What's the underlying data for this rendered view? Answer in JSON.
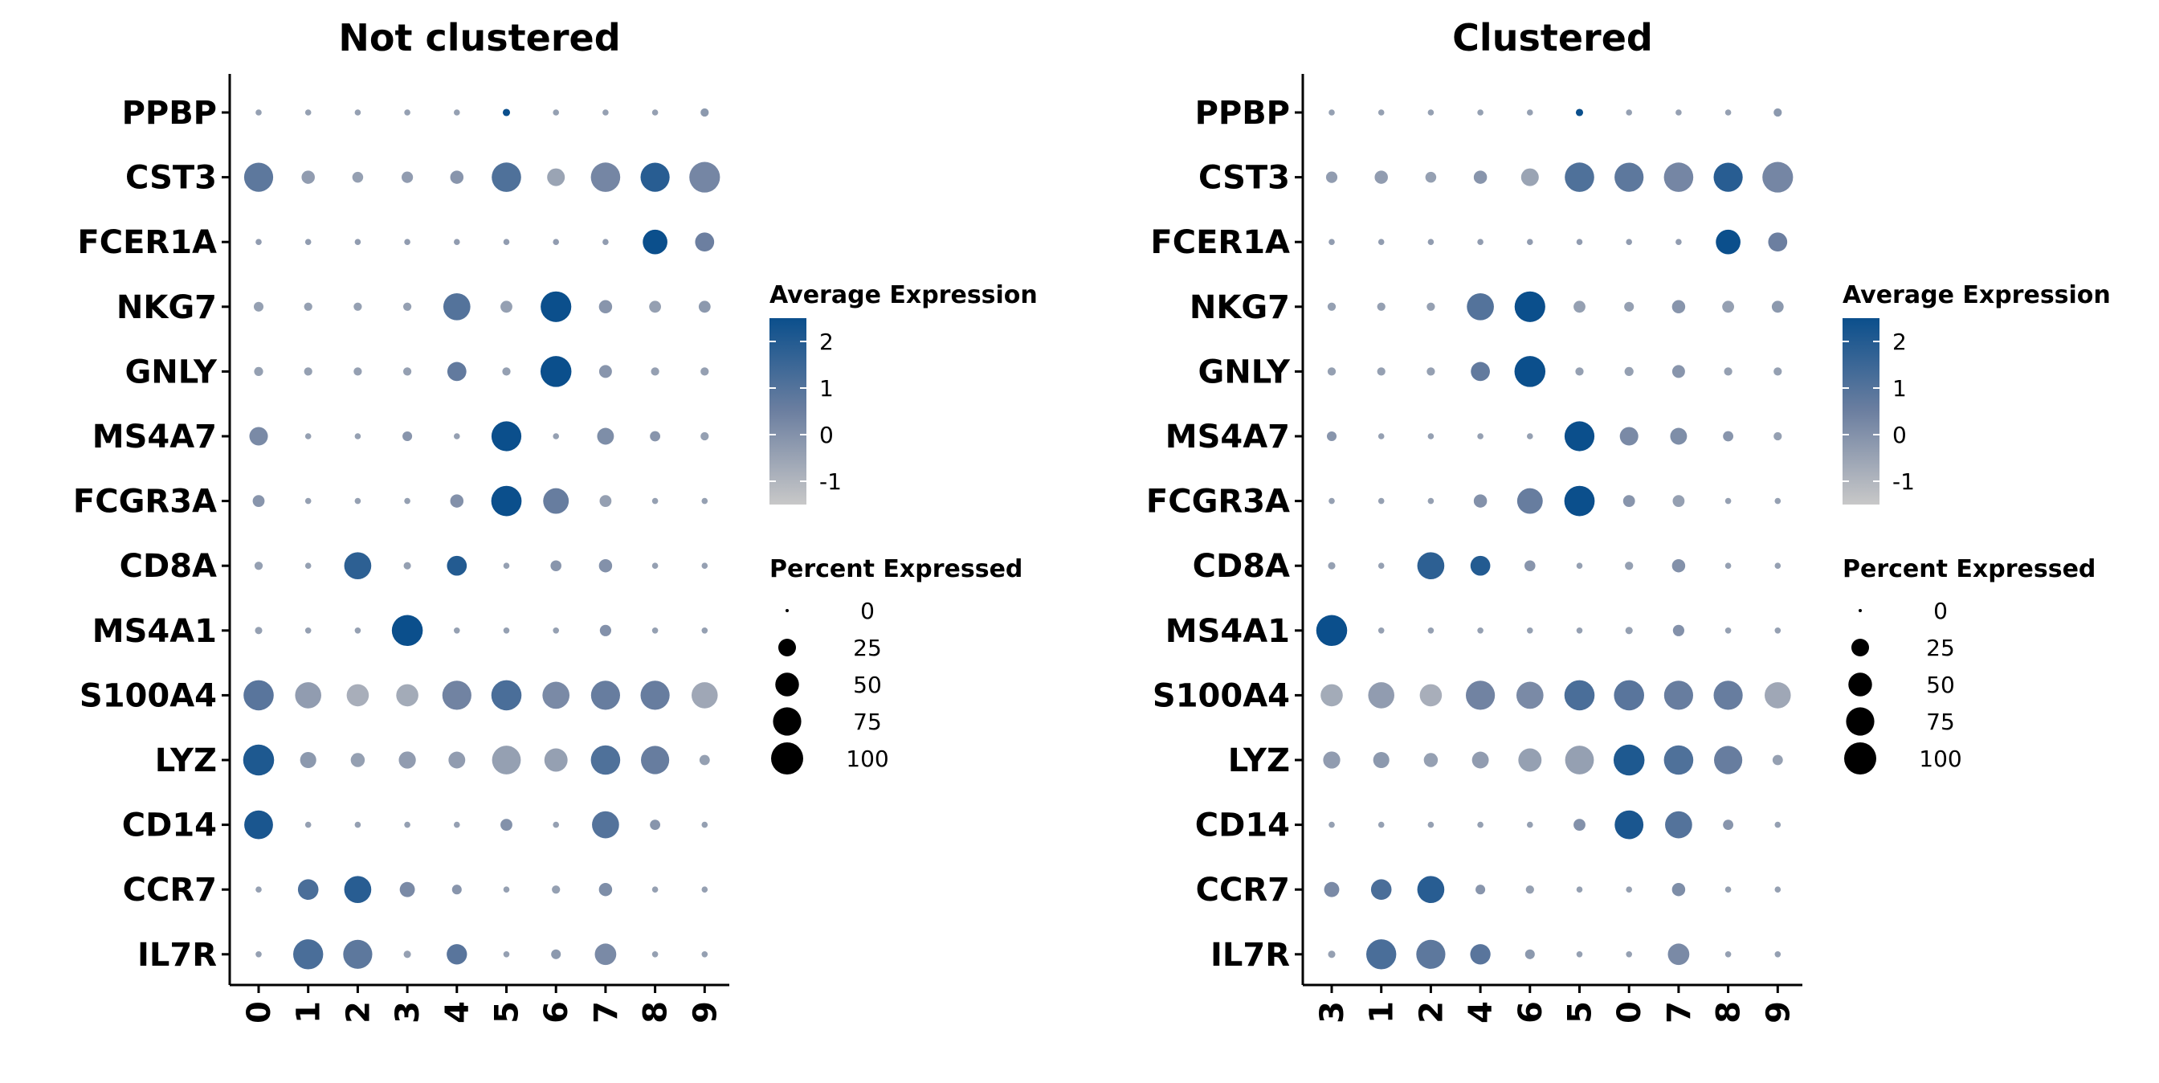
{
  "chart_data": [
    {
      "type": "dotplot",
      "title": "Not clustered",
      "genes": [
        "PPBP",
        "CST3",
        "FCER1A",
        "NKG7",
        "GNLY",
        "MS4A7",
        "FCGR3A",
        "CD8A",
        "MS4A1",
        "S100A4",
        "LYZ",
        "CD14",
        "CCR7",
        "IL7R"
      ],
      "clusters": [
        "0",
        "1",
        "2",
        "3",
        "4",
        "5",
        "6",
        "7",
        "8",
        "9"
      ],
      "avg_expression": {
        "PPBP": [
          -0.4,
          -0.4,
          -0.4,
          -0.4,
          -0.4,
          2.6,
          -0.4,
          -0.4,
          -0.4,
          -0.2
        ],
        "CST3": [
          0.8,
          -0.3,
          -0.4,
          -0.3,
          -0.1,
          1.1,
          -0.5,
          0.3,
          1.9,
          0.3
        ],
        "FCER1A": [
          -0.3,
          -0.3,
          -0.3,
          -0.3,
          -0.3,
          -0.3,
          -0.3,
          -0.3,
          2.7,
          0.5
        ],
        "NKG7": [
          -0.4,
          -0.4,
          -0.4,
          -0.4,
          1.0,
          -0.4,
          2.5,
          -0.1,
          -0.4,
          -0.2
        ],
        "GNLY": [
          -0.4,
          -0.4,
          -0.4,
          -0.4,
          0.7,
          -0.4,
          2.6,
          -0.1,
          -0.4,
          -0.4
        ],
        "MS4A7": [
          0.2,
          -0.4,
          -0.4,
          -0.1,
          -0.4,
          2.6,
          -0.4,
          0.1,
          -0.1,
          -0.4
        ],
        "FCGR3A": [
          -0.1,
          -0.4,
          -0.4,
          -0.4,
          0.0,
          2.6,
          0.6,
          -0.4,
          -0.4,
          -0.4
        ],
        "CD8A": [
          -0.4,
          -0.4,
          1.8,
          -0.4,
          2.0,
          -0.4,
          -0.1,
          0.0,
          -0.4,
          -0.4
        ],
        "MS4A1": [
          -0.4,
          -0.4,
          -0.4,
          2.6,
          -0.4,
          -0.4,
          -0.4,
          0.0,
          -0.4,
          -0.4
        ],
        "S100A4": [
          0.9,
          -0.3,
          -0.8,
          -0.7,
          0.4,
          1.2,
          0.2,
          0.6,
          0.6,
          -0.6
        ],
        "LYZ": [
          2.1,
          -0.2,
          -0.4,
          -0.3,
          -0.3,
          -0.4,
          -0.4,
          1.1,
          0.6,
          -0.4
        ],
        "CD14": [
          2.2,
          -0.4,
          -0.4,
          -0.4,
          -0.4,
          0.0,
          -0.4,
          1.0,
          -0.1,
          -0.4
        ],
        "CCR7": [
          -0.4,
          1.2,
          1.9,
          0.2,
          -0.1,
          -0.4,
          -0.4,
          0.1,
          -0.4,
          -0.4
        ],
        "IL7R": [
          -0.4,
          1.2,
          0.8,
          -0.4,
          0.9,
          -0.4,
          -0.2,
          0.2,
          -0.4,
          -0.4
        ]
      },
      "pct_expressed": {
        "PPBP": [
          1,
          1,
          1,
          1,
          1,
          2,
          1,
          1,
          1,
          3
        ],
        "CST3": [
          80,
          12,
          7,
          8,
          12,
          82,
          25,
          82,
          80,
          90
        ],
        "FCER1A": [
          1,
          1,
          1,
          1,
          1,
          1,
          1,
          1,
          55,
          30
        ],
        "NKG7": [
          5,
          3,
          3,
          3,
          68,
          9,
          90,
          12,
          9,
          9
        ],
        "GNLY": [
          4,
          3,
          3,
          3,
          30,
          3,
          92,
          11,
          3,
          3
        ],
        "MS4A7": [
          28,
          1,
          1,
          5,
          1,
          85,
          1,
          22,
          6,
          3
        ],
        "FCGR3A": [
          9,
          1,
          1,
          1,
          12,
          88,
          60,
          9,
          1,
          1
        ],
        "CD8A": [
          3,
          1,
          68,
          2,
          33,
          1,
          7,
          12,
          1,
          1
        ],
        "MS4A1": [
          2,
          1,
          1,
          92,
          1,
          1,
          1,
          8,
          1,
          1
        ],
        "S100A4": [
          87,
          63,
          43,
          43,
          80,
          87,
          68,
          80,
          80,
          63
        ],
        "LYZ": [
          92,
          20,
          14,
          23,
          22,
          78,
          48,
          82,
          75,
          6
        ],
        "CD14": [
          78,
          1,
          1,
          1,
          1,
          9,
          1,
          68,
          6,
          1
        ],
        "CCR7": [
          1,
          36,
          68,
          17,
          5,
          1,
          3,
          12,
          1,
          1
        ],
        "IL7R": [
          1,
          86,
          80,
          2,
          35,
          1,
          5,
          40,
          1,
          1
        ]
      },
      "legend_color_title": "Average Expression",
      "legend_color_ticks": [
        -1,
        0,
        1,
        2
      ],
      "legend_size_title": "Percent Expressed",
      "legend_size_ticks": [
        0,
        25,
        50,
        75,
        100
      ]
    },
    {
      "type": "dotplot",
      "title": "Clustered",
      "genes": [
        "PPBP",
        "CST3",
        "FCER1A",
        "NKG7",
        "GNLY",
        "MS4A7",
        "FCGR3A",
        "CD8A",
        "MS4A1",
        "S100A4",
        "LYZ",
        "CD14",
        "CCR7",
        "IL7R"
      ],
      "clusters": [
        "3",
        "1",
        "2",
        "4",
        "6",
        "5",
        "0",
        "7",
        "8",
        "9"
      ],
      "avg_expression": {
        "PPBP": [
          -0.4,
          -0.4,
          -0.4,
          -0.4,
          -0.4,
          2.6,
          -0.4,
          -0.4,
          -0.4,
          -0.2
        ],
        "CST3": [
          -0.3,
          -0.3,
          -0.4,
          -0.1,
          -0.5,
          1.1,
          0.8,
          0.3,
          1.9,
          0.3
        ],
        "FCER1A": [
          -0.3,
          -0.3,
          -0.3,
          -0.3,
          -0.3,
          -0.3,
          -0.3,
          -0.3,
          2.7,
          0.5
        ],
        "NKG7": [
          -0.4,
          -0.4,
          -0.4,
          1.0,
          2.5,
          -0.4,
          -0.4,
          -0.1,
          -0.4,
          -0.2
        ],
        "GNLY": [
          -0.4,
          -0.4,
          -0.4,
          0.7,
          2.6,
          -0.4,
          -0.4,
          -0.1,
          -0.4,
          -0.4
        ],
        "MS4A7": [
          -0.1,
          -0.4,
          -0.4,
          -0.4,
          -0.4,
          2.6,
          0.2,
          0.1,
          -0.1,
          -0.4
        ],
        "FCGR3A": [
          -0.4,
          -0.4,
          -0.4,
          0.0,
          0.6,
          2.6,
          -0.1,
          -0.4,
          -0.4,
          -0.4
        ],
        "CD8A": [
          -0.4,
          -0.4,
          1.8,
          2.0,
          -0.1,
          -0.4,
          -0.4,
          0.0,
          -0.4,
          -0.4
        ],
        "MS4A1": [
          2.6,
          -0.4,
          -0.4,
          -0.4,
          -0.4,
          -0.4,
          -0.4,
          0.0,
          -0.4,
          -0.4
        ],
        "S100A4": [
          -0.7,
          -0.3,
          -0.8,
          0.4,
          0.2,
          1.2,
          0.9,
          0.6,
          0.6,
          -0.6
        ],
        "LYZ": [
          -0.3,
          -0.2,
          -0.4,
          -0.3,
          -0.4,
          -0.4,
          2.1,
          1.1,
          0.6,
          -0.4
        ],
        "CD14": [
          -0.4,
          -0.4,
          -0.4,
          -0.4,
          -0.4,
          0.0,
          2.2,
          1.0,
          -0.1,
          -0.4
        ],
        "CCR7": [
          0.2,
          1.2,
          1.9,
          -0.1,
          -0.4,
          -0.4,
          -0.4,
          0.1,
          -0.4,
          -0.4
        ],
        "IL7R": [
          -0.4,
          1.2,
          0.8,
          0.9,
          -0.2,
          -0.4,
          -0.4,
          0.2,
          -0.4,
          -0.4
        ]
      },
      "pct_expressed": {
        "PPBP": [
          1,
          1,
          1,
          1,
          1,
          2,
          1,
          1,
          1,
          3
        ],
        "CST3": [
          8,
          12,
          7,
          12,
          25,
          82,
          80,
          82,
          80,
          90
        ],
        "FCER1A": [
          1,
          1,
          1,
          1,
          1,
          1,
          1,
          1,
          55,
          30
        ],
        "NKG7": [
          3,
          3,
          3,
          68,
          90,
          9,
          5,
          12,
          9,
          9
        ],
        "GNLY": [
          3,
          3,
          3,
          30,
          92,
          3,
          4,
          11,
          3,
          3
        ],
        "MS4A7": [
          5,
          1,
          1,
          1,
          1,
          85,
          28,
          22,
          6,
          3
        ],
        "FCGR3A": [
          1,
          1,
          1,
          12,
          60,
          88,
          9,
          9,
          1,
          1
        ],
        "CD8A": [
          2,
          1,
          68,
          33,
          7,
          1,
          3,
          12,
          1,
          1
        ],
        "MS4A1": [
          92,
          1,
          1,
          1,
          1,
          1,
          2,
          8,
          1,
          1
        ],
        "S100A4": [
          43,
          63,
          43,
          80,
          68,
          87,
          87,
          80,
          80,
          63
        ],
        "LYZ": [
          23,
          20,
          14,
          22,
          48,
          78,
          92,
          82,
          75,
          6
        ],
        "CD14": [
          1,
          1,
          1,
          1,
          1,
          9,
          78,
          68,
          6,
          1
        ],
        "CCR7": [
          17,
          36,
          68,
          5,
          3,
          1,
          1,
          12,
          1,
          1
        ],
        "IL7R": [
          2,
          86,
          80,
          35,
          5,
          1,
          1,
          40,
          1,
          1
        ]
      },
      "legend_color_title": "Average Expression",
      "legend_color_ticks": [
        -1,
        0,
        1,
        2
      ],
      "legend_size_title": "Percent Expressed",
      "legend_size_ticks": [
        0,
        25,
        50,
        75,
        100
      ]
    }
  ],
  "colors": {
    "low": "#c8c8c8",
    "mid": "#6c7fa0",
    "high": "#0b4f8c",
    "axis": "#000000"
  },
  "color_scale_range": [
    -1.5,
    2.5
  ]
}
